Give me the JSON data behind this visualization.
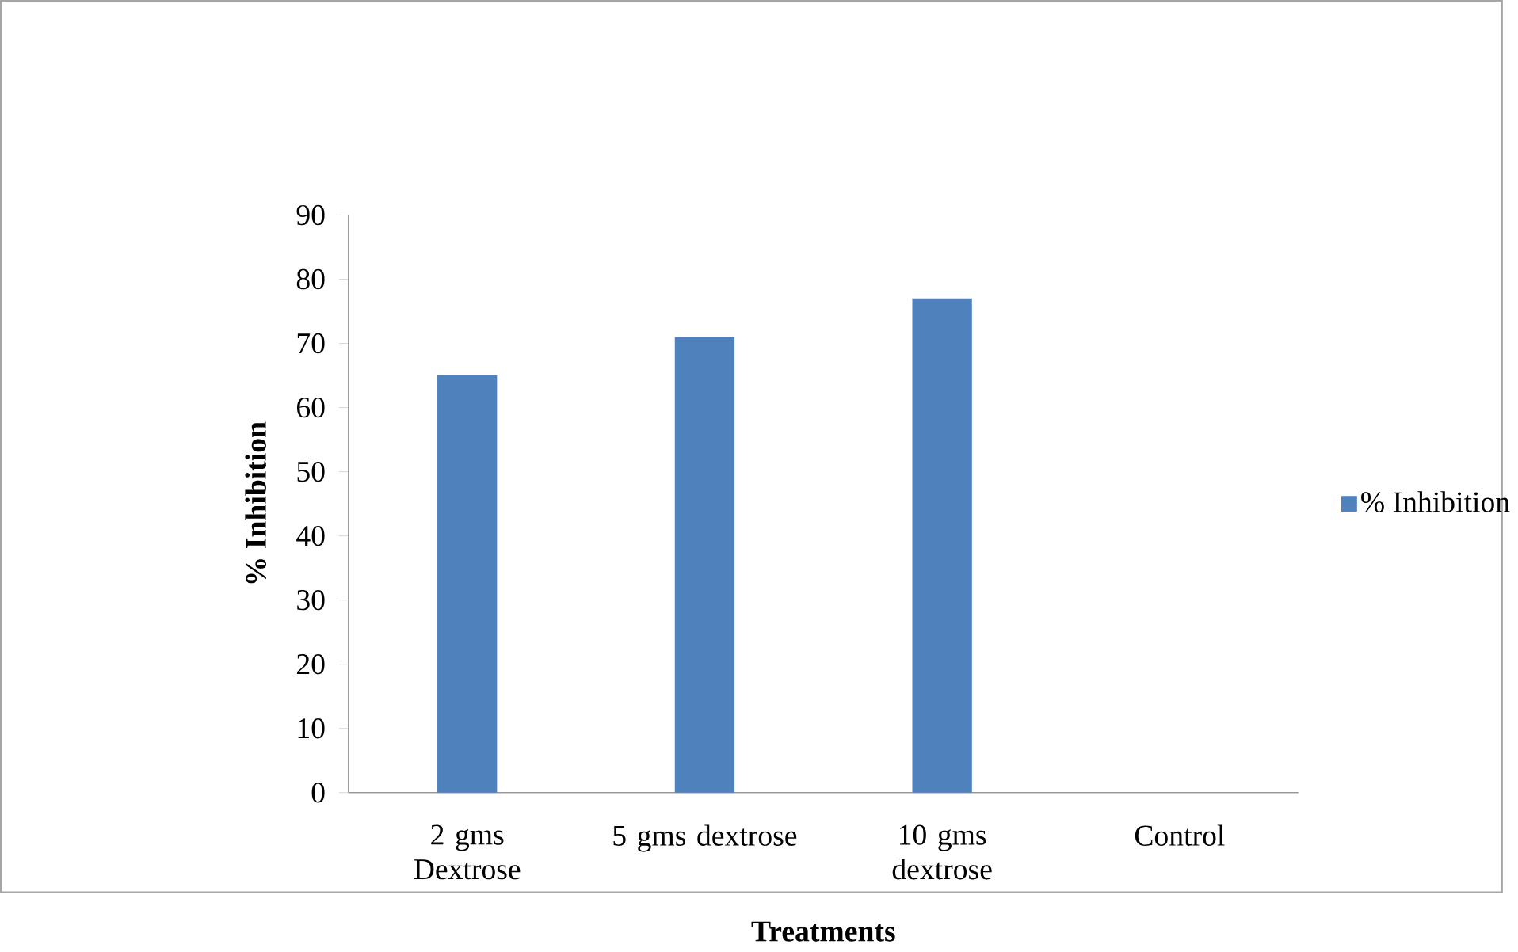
{
  "chart_data": {
    "type": "bar",
    "xlabel": "Treatments",
    "ylabel": "% Inhibition",
    "categories": [
      "2 gms Dextrose",
      "5 gms dextrose",
      "10 gms dextrose",
      "Control"
    ],
    "series": [
      {
        "name": "% Inhibition",
        "color": "#4f81bd",
        "values": [
          65,
          71,
          77,
          0
        ]
      }
    ],
    "ylim": [
      0,
      90
    ],
    "yticks": [
      0,
      10,
      20,
      30,
      40,
      50,
      60,
      70,
      80,
      90
    ],
    "grid": false,
    "legend": "right"
  }
}
